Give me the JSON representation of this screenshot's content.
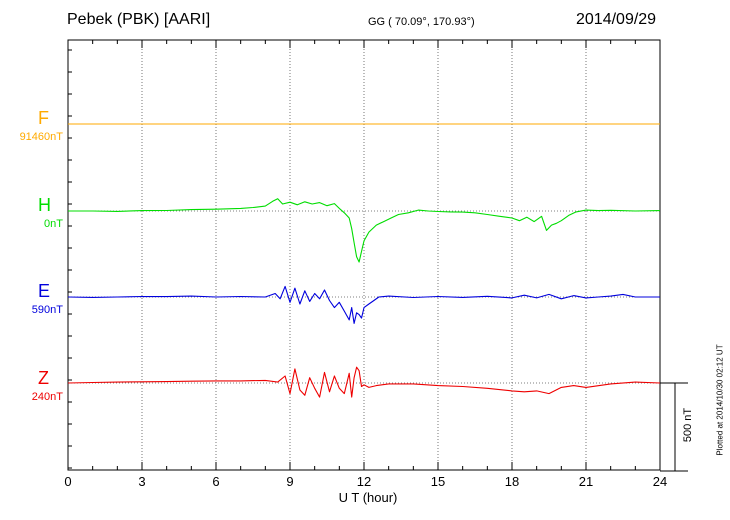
{
  "header": {
    "station": "Pebek (PBK)  [AARI]",
    "coordinates": "GG ( 70.09°, 170.93°)",
    "date": "2014/09/29"
  },
  "footer": {
    "plotted_note": "Plotted at 2014/10/30 02:12 UT"
  },
  "chart_data": {
    "type": "line",
    "title": "Pebek (PBK)  [AARI]",
    "xlabel": "U T (hour)",
    "ylabel": "",
    "xlim": [
      0,
      24
    ],
    "xticks": [
      "0",
      "3",
      "6",
      "9",
      "12",
      "15",
      "18",
      "21",
      "24"
    ],
    "grid": true,
    "scale_bar_label": "500 nT",
    "scale_bar_nT": 500,
    "series": [
      {
        "name": "F",
        "baseline_label": "91460nT",
        "color": "#ffaa00",
        "x": [
          0,
          24
        ],
        "values": [
          0,
          0
        ]
      },
      {
        "name": "H",
        "baseline_label": "0nT",
        "color": "#00dd00",
        "x": [
          0,
          1,
          2,
          3,
          4,
          5,
          6,
          7,
          7.5,
          8,
          8.3,
          8.5,
          8.7,
          9.0,
          9.3,
          9.6,
          9.9,
          10.2,
          10.5,
          10.8,
          11.0,
          11.2,
          11.4,
          11.5,
          11.6,
          11.7,
          11.8,
          11.9,
          12.0,
          12.2,
          12.5,
          12.8,
          13.1,
          13.4,
          13.8,
          14.2,
          14.6,
          15.0,
          15.5,
          16.0,
          16.5,
          17.0,
          17.5,
          18.0,
          18.3,
          18.6,
          18.9,
          19.2,
          19.4,
          19.6,
          19.8,
          20.0,
          20.3,
          20.6,
          21.0,
          21.5,
          22,
          23,
          24
        ],
        "values": [
          0,
          0,
          -2,
          2,
          3,
          8,
          10,
          15,
          20,
          28,
          55,
          70,
          40,
          50,
          35,
          52,
          40,
          48,
          30,
          42,
          15,
          -10,
          -40,
          -100,
          -180,
          -260,
          -290,
          -230,
          -170,
          -120,
          -80,
          -60,
          -40,
          -20,
          -10,
          5,
          0,
          -3,
          -5,
          -6,
          -10,
          -20,
          -30,
          -40,
          -55,
          -35,
          -60,
          -30,
          -110,
          -80,
          -70,
          -55,
          -25,
          -5,
          5,
          2,
          4,
          0,
          2
        ]
      },
      {
        "name": "E",
        "baseline_label": "590nT",
        "color": "#0000dd",
        "x": [
          0,
          1,
          2,
          3,
          4,
          5,
          6,
          7,
          8,
          8.4,
          8.6,
          8.8,
          9.0,
          9.2,
          9.4,
          9.6,
          9.8,
          10.0,
          10.2,
          10.4,
          10.6,
          10.8,
          11.0,
          11.2,
          11.4,
          11.5,
          11.6,
          11.7,
          11.8,
          11.9,
          12.0,
          12.2,
          12.4,
          12.6,
          13,
          14,
          15,
          16,
          17,
          18,
          18.5,
          19,
          19.5,
          20,
          20.5,
          21,
          21.5,
          22,
          22.5,
          23,
          24
        ],
        "values": [
          0,
          -2,
          0,
          3,
          2,
          5,
          0,
          3,
          0,
          20,
          -10,
          60,
          -30,
          50,
          -40,
          35,
          -25,
          20,
          -10,
          40,
          -20,
          -60,
          -30,
          -80,
          -130,
          -60,
          -150,
          -90,
          -100,
          -120,
          -60,
          -40,
          -20,
          0,
          5,
          -3,
          3,
          -2,
          4,
          -5,
          10,
          -5,
          15,
          -10,
          8,
          -5,
          0,
          5,
          15,
          0,
          0
        ]
      },
      {
        "name": "Z",
        "baseline_label": "240nT",
        "color": "#ee0000",
        "x": [
          0,
          1,
          2,
          3,
          4,
          5,
          6,
          7,
          8,
          8.5,
          8.8,
          9.0,
          9.2,
          9.4,
          9.6,
          9.8,
          10.0,
          10.2,
          10.4,
          10.6,
          10.8,
          11.0,
          11.2,
          11.4,
          11.5,
          11.6,
          11.7,
          11.8,
          11.9,
          12.0,
          12.2,
          12.5,
          13,
          14,
          15,
          16,
          17,
          18,
          18.5,
          19,
          19.5,
          20,
          20.5,
          21,
          22,
          23,
          24
        ],
        "values": [
          0,
          3,
          5,
          7,
          8,
          10,
          12,
          12,
          15,
          5,
          40,
          -60,
          80,
          -40,
          -70,
          30,
          -30,
          -80,
          60,
          -50,
          40,
          -30,
          -60,
          55,
          -80,
          30,
          90,
          70,
          -20,
          -10,
          -25,
          -15,
          -5,
          -5,
          -15,
          -20,
          -30,
          -45,
          -50,
          -45,
          -60,
          -25,
          -15,
          -25,
          -5,
          5,
          0
        ]
      }
    ]
  }
}
